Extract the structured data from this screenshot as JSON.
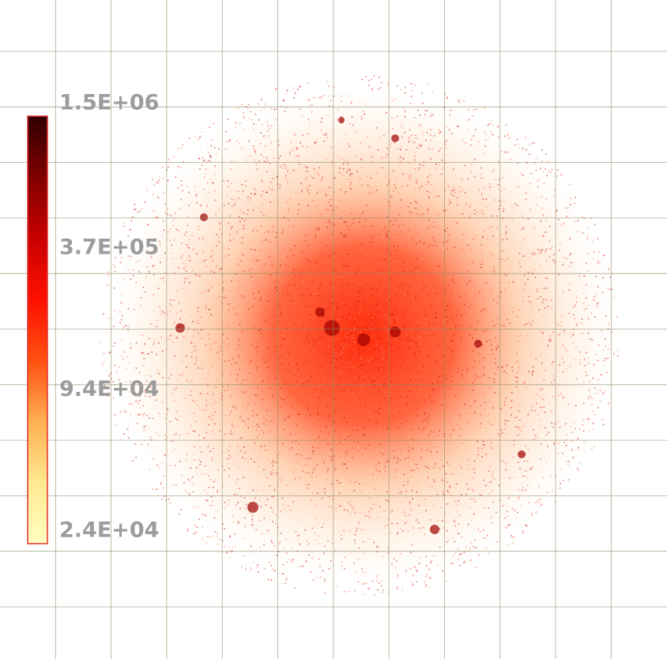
{
  "chart_data": {
    "type": "image",
    "colorbar": {
      "scale": "log",
      "lim": [
        24000,
        1500000
      ],
      "colors": [
        "#ffffc0",
        "#ffe890",
        "#ffb050",
        "#ff5010",
        "#ff1000",
        "#c80000",
        "#800000",
        "#300000"
      ],
      "border_color": "#e03030",
      "ticks": [
        {
          "value": 1500000,
          "label": "1.5E+06"
        },
        {
          "value": 370000,
          "label": "3.7E+05"
        },
        {
          "value": 94000,
          "label": "9.4E+04"
        },
        {
          "value": 24000,
          "label": "2.4E+04"
        }
      ]
    },
    "grid": true
  }
}
